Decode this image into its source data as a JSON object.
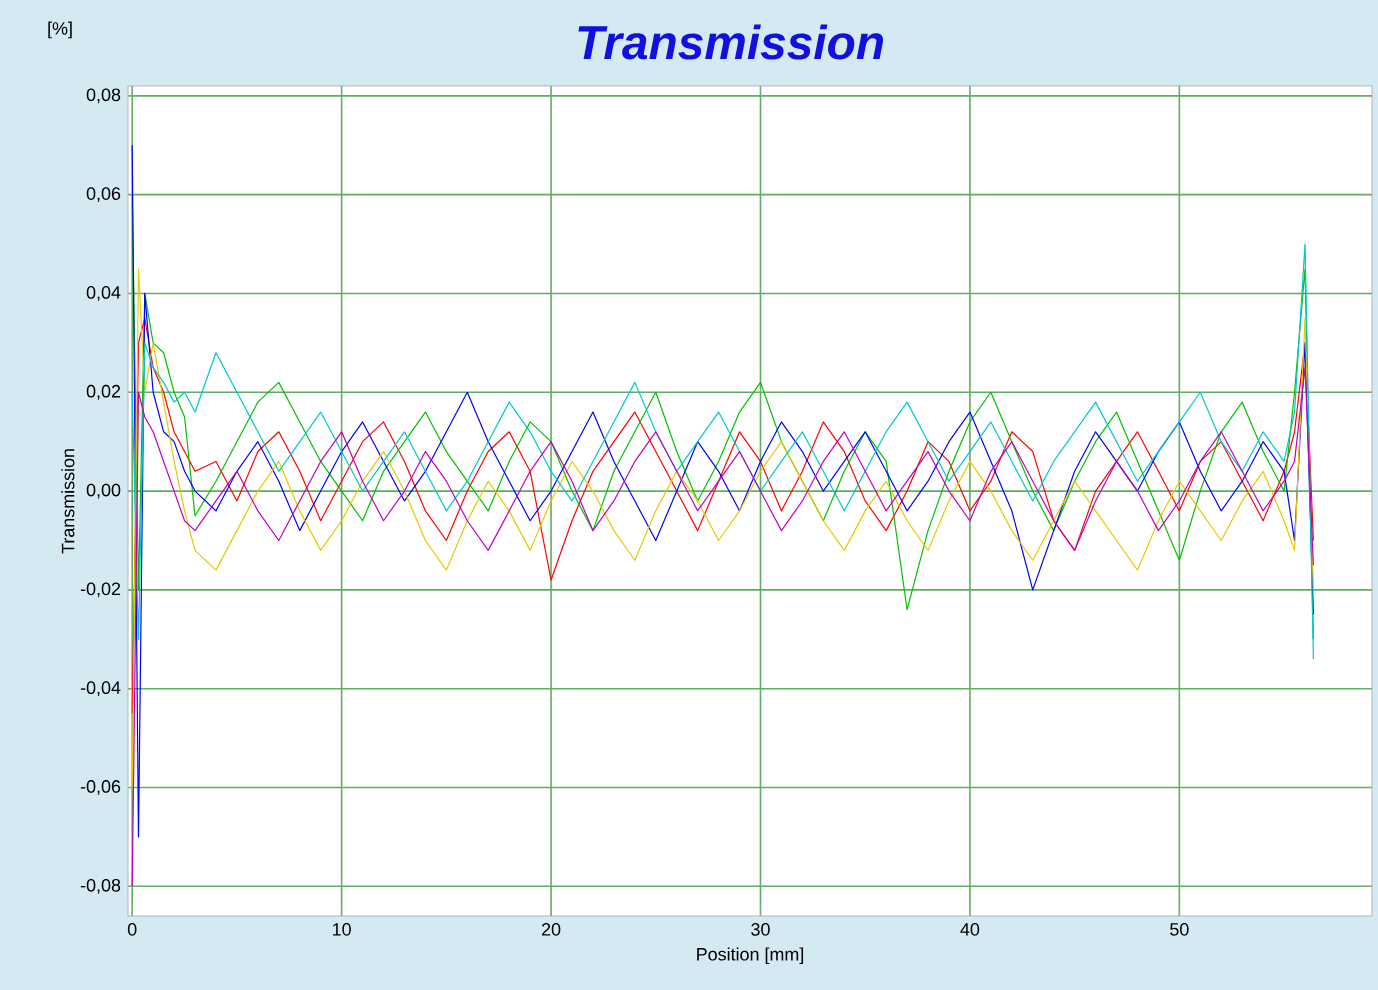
{
  "chart_data": {
    "type": "line",
    "title": "Transmission",
    "xlabel": "Position [mm]",
    "ylabel": "Transmission",
    "annotations": [
      "[%]"
    ],
    "x": [
      0,
      0.3,
      0.6,
      1,
      1.5,
      2,
      2.5,
      3,
      4,
      5,
      6,
      7,
      8,
      9,
      10,
      11,
      12,
      13,
      14,
      15,
      16,
      17,
      18,
      19,
      20,
      21,
      22,
      23,
      24,
      25,
      26,
      27,
      28,
      29,
      30,
      31,
      32,
      33,
      34,
      35,
      36,
      37,
      38,
      39,
      40,
      41,
      42,
      43,
      44,
      45,
      46,
      47,
      48,
      49,
      50,
      51,
      52,
      53,
      54,
      55,
      55.5,
      56,
      56.4
    ],
    "series": [
      {
        "color": "#ff0000",
        "values": [
          -0.045,
          0.03,
          0.035,
          0.025,
          0.02,
          0.012,
          0.008,
          0.004,
          0.006,
          -0.002,
          0.008,
          0.012,
          0.004,
          -0.006,
          0.002,
          0.01,
          0.014,
          0.006,
          -0.004,
          -0.01,
          0.0,
          0.008,
          0.012,
          0.004,
          -0.018,
          -0.006,
          0.004,
          0.01,
          0.016,
          0.008,
          0.0,
          -0.008,
          0.002,
          0.012,
          0.006,
          -0.004,
          0.004,
          0.014,
          0.008,
          -0.002,
          -0.008,
          0.0,
          0.01,
          0.006,
          -0.004,
          0.002,
          0.012,
          0.008,
          -0.006,
          -0.012,
          0.0,
          0.006,
          0.012,
          0.004,
          -0.004,
          0.006,
          0.01,
          0.002,
          -0.006,
          0.004,
          0.012,
          0.03,
          -0.01
        ]
      },
      {
        "color": "#00c000",
        "values": [
          0.06,
          -0.02,
          0.04,
          0.03,
          0.028,
          0.02,
          0.015,
          -0.005,
          0.002,
          0.01,
          0.018,
          0.022,
          0.014,
          0.006,
          0.0,
          -0.006,
          0.004,
          0.01,
          0.016,
          0.008,
          0.002,
          -0.004,
          0.006,
          0.014,
          0.01,
          0.0,
          -0.008,
          0.004,
          0.012,
          0.02,
          0.008,
          -0.002,
          0.006,
          0.016,
          0.022,
          0.01,
          0.002,
          -0.006,
          0.004,
          0.012,
          0.006,
          -0.024,
          -0.008,
          0.004,
          0.014,
          0.02,
          0.01,
          0.0,
          -0.008,
          0.002,
          0.01,
          0.016,
          0.006,
          -0.004,
          -0.014,
          0.0,
          0.012,
          0.018,
          0.008,
          0.0,
          0.02,
          0.045,
          -0.03
        ]
      },
      {
        "color": "#0000ff",
        "values": [
          0.07,
          -0.07,
          0.04,
          0.02,
          0.012,
          0.01,
          0.004,
          0.0,
          -0.004,
          0.004,
          0.01,
          0.002,
          -0.008,
          0.0,
          0.008,
          0.014,
          0.006,
          -0.002,
          0.004,
          0.012,
          0.02,
          0.01,
          0.002,
          -0.006,
          0.0,
          0.008,
          0.016,
          0.006,
          -0.002,
          -0.01,
          0.0,
          0.01,
          0.004,
          -0.004,
          0.006,
          0.014,
          0.008,
          0.0,
          0.006,
          0.012,
          0.004,
          -0.004,
          0.002,
          0.01,
          0.016,
          0.006,
          -0.004,
          -0.02,
          -0.008,
          0.004,
          0.012,
          0.006,
          0.0,
          0.008,
          0.014,
          0.004,
          -0.004,
          0.002,
          0.01,
          0.004,
          -0.01,
          0.03,
          -0.025
        ]
      },
      {
        "color": "#e8c800",
        "values": [
          -0.06,
          0.045,
          0.02,
          0.03,
          0.018,
          0.006,
          -0.004,
          -0.012,
          -0.016,
          -0.008,
          0.0,
          0.006,
          -0.004,
          -0.012,
          -0.006,
          0.002,
          0.008,
          0.0,
          -0.01,
          -0.016,
          -0.006,
          0.002,
          -0.004,
          -0.012,
          -0.002,
          0.006,
          0.0,
          -0.008,
          -0.014,
          -0.004,
          0.004,
          -0.002,
          -0.01,
          -0.004,
          0.004,
          0.01,
          0.002,
          -0.006,
          -0.012,
          -0.004,
          0.002,
          -0.006,
          -0.012,
          -0.002,
          0.006,
          0.0,
          -0.008,
          -0.014,
          -0.006,
          0.002,
          -0.004,
          -0.01,
          -0.016,
          -0.006,
          0.002,
          -0.004,
          -0.01,
          -0.002,
          0.004,
          -0.006,
          -0.012,
          0.035,
          -0.02
        ]
      },
      {
        "color": "#00c8c8",
        "values": [
          0.02,
          -0.03,
          0.03,
          0.025,
          0.022,
          0.018,
          0.02,
          0.016,
          0.028,
          0.02,
          0.012,
          0.004,
          0.01,
          0.016,
          0.008,
          0.0,
          0.006,
          0.012,
          0.004,
          -0.004,
          0.002,
          0.01,
          0.018,
          0.012,
          0.004,
          -0.002,
          0.006,
          0.014,
          0.022,
          0.012,
          0.004,
          0.01,
          0.016,
          0.008,
          0.0,
          0.006,
          0.012,
          0.004,
          -0.004,
          0.004,
          0.012,
          0.018,
          0.01,
          0.002,
          0.008,
          0.014,
          0.006,
          -0.002,
          0.006,
          0.012,
          0.018,
          0.01,
          0.002,
          0.008,
          0.014,
          0.02,
          0.01,
          0.004,
          0.012,
          0.006,
          0.016,
          0.05,
          -0.034
        ]
      },
      {
        "color": "#c000c0",
        "values": [
          -0.08,
          0.02,
          0.015,
          0.012,
          0.006,
          0.0,
          -0.006,
          -0.008,
          -0.002,
          0.004,
          -0.004,
          -0.01,
          -0.002,
          0.006,
          0.012,
          0.002,
          -0.006,
          0.0,
          0.008,
          0.002,
          -0.006,
          -0.012,
          -0.004,
          0.004,
          0.01,
          0.002,
          -0.008,
          -0.002,
          0.006,
          0.012,
          0.004,
          -0.004,
          0.002,
          0.008,
          0.0,
          -0.008,
          -0.002,
          0.006,
          0.012,
          0.004,
          -0.004,
          0.002,
          0.008,
          0.0,
          -0.006,
          0.004,
          0.01,
          0.002,
          -0.006,
          -0.012,
          -0.002,
          0.006,
          0.0,
          -0.008,
          -0.002,
          0.006,
          0.012,
          0.004,
          -0.004,
          0.002,
          0.006,
          0.025,
          -0.015
        ]
      }
    ],
    "xlim": [
      -0.2,
      59.2
    ],
    "ylim": [
      -0.086,
      0.082
    ],
    "xticks": [
      0,
      10,
      20,
      30,
      40,
      50
    ],
    "yticks": [
      {
        "value": -0.08,
        "label": "-0,08"
      },
      {
        "value": -0.06,
        "label": "-0,06"
      },
      {
        "value": -0.04,
        "label": "-0,04"
      },
      {
        "value": -0.02,
        "label": "-0,02"
      },
      {
        "value": 0,
        "label": "0,00"
      },
      {
        "value": 0.02,
        "label": "0,02"
      },
      {
        "value": 0.04,
        "label": "0,04"
      },
      {
        "value": 0.06,
        "label": "0,06"
      },
      {
        "value": 0.08,
        "label": "0,08"
      }
    ],
    "grid": true,
    "marker": "none",
    "line_style": "solid"
  }
}
